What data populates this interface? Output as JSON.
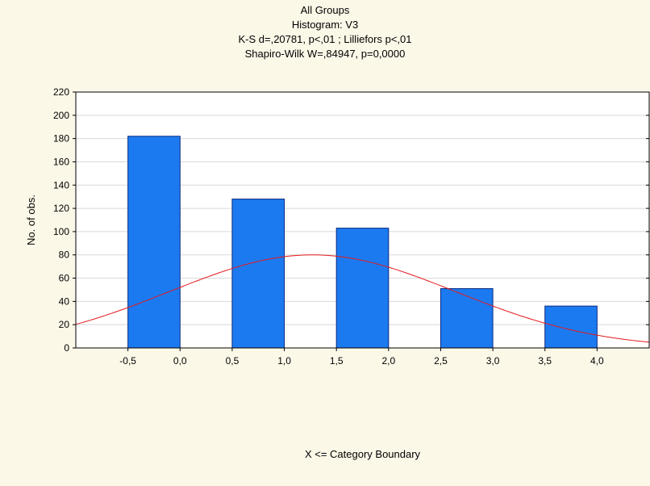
{
  "chart_data": {
    "type": "bar",
    "title_lines": [
      "All Groups",
      "Histogram: V3",
      "K-S d=,20781, p<,01 ; Lilliefors p<,01",
      "Shapiro-Wilk W=,84947, p=0,0000"
    ],
    "xlabel": "X <= Category Boundary",
    "ylabel": "No. of obs.",
    "bins": [
      {
        "from": -0.5,
        "to": 0.0,
        "value": 182
      },
      {
        "from": 0.5,
        "to": 1.0,
        "value": 128
      },
      {
        "from": 1.5,
        "to": 2.0,
        "value": 103
      },
      {
        "from": 2.5,
        "to": 3.0,
        "value": 51
      },
      {
        "from": 3.5,
        "to": 4.0,
        "value": 36
      }
    ],
    "x_ticks": [
      -0.5,
      0.0,
      0.5,
      1.0,
      1.5,
      2.0,
      2.5,
      3.0,
      3.5,
      4.0
    ],
    "x_tick_labels": [
      "-0,5",
      "0,0",
      "0,5",
      "1,0",
      "1,5",
      "2,0",
      "2,5",
      "3,0",
      "3,5",
      "4,0"
    ],
    "xlim": [
      -1.0,
      4.5
    ],
    "y_ticks": [
      0,
      20,
      40,
      60,
      80,
      100,
      120,
      140,
      160,
      180,
      200,
      220
    ],
    "y_tick_labels": [
      "0",
      "20",
      "40",
      "60",
      "80",
      "100",
      "120",
      "140",
      "160",
      "180",
      "200",
      "220"
    ],
    "ylim": [
      0,
      220
    ],
    "grid": "horizontal",
    "normal_curve": {
      "amplitude": 80,
      "mean": 1.27,
      "sd": 1.37,
      "color": "#e41a1c"
    },
    "colors": {
      "bar_fill": "#1c7af0",
      "bar_stroke": "#0a2a80",
      "curve": "#e41a1c",
      "plot_bg": "#ffffff",
      "page_bg": "#fcf8e8",
      "grid": "#d8d8d8"
    }
  }
}
